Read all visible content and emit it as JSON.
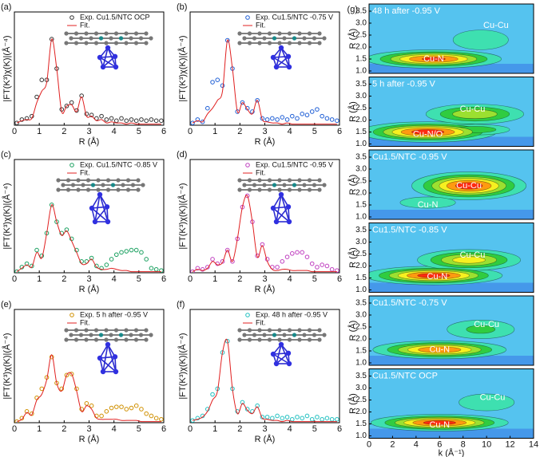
{
  "chart_data": [
    {
      "type": "line",
      "panel_label": "(a)",
      "xlabel": "R (Å)",
      "ylabel": "|FT(K³)χ(K)|(Å⁻⁴)",
      "xlim": [
        0,
        6
      ],
      "ylim": [
        0,
        1
      ],
      "xticks": [
        0,
        1,
        2,
        3,
        4,
        5,
        6
      ],
      "x": [
        0.1,
        0.3,
        0.5,
        0.7,
        0.9,
        1.1,
        1.3,
        1.5,
        1.7,
        1.9,
        2.1,
        2.3,
        2.5,
        2.7,
        2.9,
        3.1,
        3.3,
        3.5,
        3.7,
        3.9,
        4.1,
        4.3,
        4.5,
        4.7,
        4.9,
        5.1,
        5.3,
        5.5,
        5.7,
        5.9
      ],
      "series": [
        {
          "name": "Exp. Cu1.5/NTC OCP",
          "style": "markers",
          "color": "#333333",
          "values": [
            0.02,
            0.05,
            0.06,
            0.08,
            0.25,
            0.4,
            0.4,
            0.76,
            0.5,
            0.14,
            0.17,
            0.2,
            0.13,
            0.26,
            0.1,
            0.09,
            0.06,
            0.08,
            0.05,
            0.06,
            0.04,
            0.06,
            0.04,
            0.05,
            0.04,
            0.05,
            0.04,
            0.05,
            0.04,
            0.04
          ]
        },
        {
          "name": "Fit.",
          "style": "line",
          "color": "#e02020",
          "values": [
            0.02,
            0.04,
            0.05,
            0.06,
            0.2,
            0.3,
            0.38,
            0.76,
            0.5,
            0.12,
            0.17,
            0.18,
            0.12,
            0.25,
            0.08,
            0.08,
            0.04,
            0.05,
            0.02,
            0.03,
            0.02,
            0.02,
            0.01,
            0.02,
            0.01,
            0.01,
            0.01,
            0.01,
            0.01,
            0.01
          ]
        }
      ]
    },
    {
      "type": "line",
      "panel_label": "(b)",
      "xlabel": "R (Å)",
      "ylabel": "|FT(K³)χ(K)|(Å⁻⁴)",
      "xlim": [
        0,
        6
      ],
      "ylim": [
        0,
        1
      ],
      "xticks": [
        0,
        1,
        2,
        3,
        4,
        5,
        6
      ],
      "x": [
        0.1,
        0.3,
        0.5,
        0.7,
        0.9,
        1.1,
        1.3,
        1.5,
        1.7,
        1.9,
        2.1,
        2.3,
        2.5,
        2.7,
        2.9,
        3.1,
        3.3,
        3.5,
        3.7,
        3.9,
        4.1,
        4.3,
        4.5,
        4.7,
        4.9,
        5.1,
        5.3,
        5.5,
        5.7,
        5.9
      ],
      "series": [
        {
          "name": "Exp. Cu1.5/NTC -0.75 V",
          "style": "markers",
          "color": "#1f5fd6",
          "values": [
            0.02,
            0.05,
            0.03,
            0.15,
            0.38,
            0.4,
            0.35,
            0.75,
            0.5,
            0.12,
            0.2,
            0.15,
            0.12,
            0.22,
            0.06,
            0.05,
            0.06,
            0.05,
            0.07,
            0.05,
            0.08,
            0.06,
            0.1,
            0.09,
            0.12,
            0.14,
            0.08,
            0.06,
            0.05,
            0.04
          ]
        },
        {
          "name": "Fit.",
          "style": "line",
          "color": "#e02020",
          "values": [
            0.02,
            0.04,
            0.03,
            0.1,
            0.15,
            0.22,
            0.3,
            0.75,
            0.5,
            0.12,
            0.2,
            0.14,
            0.1,
            0.22,
            0.05,
            0.03,
            0.02,
            0.02,
            0.01,
            0.02,
            0.01,
            0.01,
            0.01,
            0.01,
            0.01,
            0.01,
            0.01,
            0.01,
            0.01,
            0.01
          ]
        }
      ]
    },
    {
      "type": "line",
      "panel_label": "(c)",
      "xlabel": "R (Å)",
      "ylabel": "|FT(K³)χ(K)|(Å⁻⁴)",
      "xlim": [
        0,
        6
      ],
      "ylim": [
        0,
        1
      ],
      "xticks": [
        0,
        1,
        2,
        3,
        4,
        5,
        6
      ],
      "x": [
        0.1,
        0.3,
        0.5,
        0.7,
        0.9,
        1.1,
        1.3,
        1.5,
        1.7,
        1.9,
        2.1,
        2.3,
        2.5,
        2.7,
        2.9,
        3.1,
        3.3,
        3.5,
        3.7,
        3.9,
        4.1,
        4.3,
        4.5,
        4.7,
        4.9,
        5.1,
        5.3,
        5.5,
        5.7,
        5.9
      ],
      "series": [
        {
          "name": "Exp. Cu1.5/NTC -0.85 V",
          "style": "markers",
          "color": "#1aa060",
          "values": [
            0.01,
            0.05,
            0.08,
            0.06,
            0.2,
            0.15,
            0.35,
            0.6,
            0.45,
            0.35,
            0.38,
            0.3,
            0.2,
            0.1,
            0.1,
            0.13,
            0.06,
            0.04,
            0.07,
            0.12,
            0.16,
            0.18,
            0.19,
            0.2,
            0.2,
            0.18,
            0.12,
            0.04,
            0.03,
            0.02
          ]
        },
        {
          "name": "Fit.",
          "style": "line",
          "color": "#e02020",
          "values": [
            0.01,
            0.04,
            0.07,
            0.05,
            0.18,
            0.13,
            0.35,
            0.6,
            0.45,
            0.33,
            0.37,
            0.28,
            0.18,
            0.08,
            0.08,
            0.12,
            0.05,
            0.03,
            0.03,
            0.04,
            0.03,
            0.02,
            0.02,
            0.01,
            0.01,
            0.01,
            0.01,
            0.01,
            0.01,
            0.01
          ]
        }
      ]
    },
    {
      "type": "line",
      "panel_label": "(d)",
      "xlabel": "R (Å)",
      "ylabel": "|FT(K³)χ(K)|(Å⁻⁴)",
      "xlim": [
        0,
        6
      ],
      "ylim": [
        0,
        1
      ],
      "xticks": [
        0,
        1,
        2,
        3,
        4,
        5,
        6
      ],
      "x": [
        0.1,
        0.3,
        0.5,
        0.7,
        0.9,
        1.1,
        1.3,
        1.5,
        1.7,
        1.9,
        2.1,
        2.3,
        2.5,
        2.7,
        2.9,
        3.1,
        3.3,
        3.5,
        3.7,
        3.9,
        4.1,
        4.3,
        4.5,
        4.7,
        4.9,
        5.1,
        5.3,
        5.5,
        5.7,
        5.9
      ],
      "series": [
        {
          "name": "Exp. Cu1.5/NTC -0.95 V",
          "style": "markers",
          "color": "#c040c0",
          "values": [
            0.01,
            0.04,
            0.03,
            0.05,
            0.12,
            0.08,
            0.1,
            0.2,
            0.1,
            0.3,
            0.58,
            0.68,
            0.45,
            0.15,
            0.25,
            0.12,
            0.05,
            0.05,
            0.1,
            0.14,
            0.17,
            0.18,
            0.18,
            0.14,
            0.08,
            0.05,
            0.07,
            0.06,
            0.03,
            0.02
          ]
        },
        {
          "name": "Fit.",
          "style": "line",
          "color": "#e02020",
          "values": [
            0.01,
            0.03,
            0.02,
            0.04,
            0.1,
            0.07,
            0.09,
            0.2,
            0.1,
            0.3,
            0.58,
            0.68,
            0.45,
            0.14,
            0.24,
            0.1,
            0.03,
            0.02,
            0.03,
            0.03,
            0.02,
            0.02,
            0.02,
            0.02,
            0.01,
            0.01,
            0.01,
            0.01,
            0.01,
            0.01
          ]
        }
      ]
    },
    {
      "type": "line",
      "panel_label": "(e)",
      "xlabel": "R (Å)",
      "ylabel": "|FT(K³)χ(K)|(Å⁻⁴)",
      "xlim": [
        0,
        6
      ],
      "ylim": [
        0,
        1
      ],
      "xticks": [
        0,
        1,
        2,
        3,
        4,
        5,
        6
      ],
      "x": [
        0.1,
        0.3,
        0.5,
        0.7,
        0.9,
        1.1,
        1.3,
        1.5,
        1.7,
        1.9,
        2.1,
        2.3,
        2.5,
        2.7,
        2.9,
        3.1,
        3.3,
        3.5,
        3.7,
        3.9,
        4.1,
        4.3,
        4.5,
        4.7,
        4.9,
        5.1,
        5.3,
        5.5,
        5.7,
        5.9
      ],
      "series": [
        {
          "name": "Exp. 5 h after -0.95 V",
          "style": "markers",
          "color": "#d09000",
          "values": [
            0.01,
            0.04,
            0.1,
            0.08,
            0.22,
            0.3,
            0.4,
            0.58,
            0.35,
            0.3,
            0.42,
            0.43,
            0.3,
            0.12,
            0.17,
            0.15,
            0.06,
            0.06,
            0.1,
            0.13,
            0.14,
            0.14,
            0.12,
            0.13,
            0.15,
            0.12,
            0.08,
            0.06,
            0.04,
            0.03
          ]
        },
        {
          "name": "Fit.",
          "style": "line",
          "color": "#e02020",
          "values": [
            0.01,
            0.03,
            0.09,
            0.07,
            0.2,
            0.25,
            0.38,
            0.6,
            0.35,
            0.28,
            0.42,
            0.43,
            0.28,
            0.1,
            0.15,
            0.12,
            0.04,
            0.03,
            0.03,
            0.03,
            0.03,
            0.02,
            0.02,
            0.02,
            0.02,
            0.01,
            0.01,
            0.01,
            0.01,
            0.01
          ]
        }
      ]
    },
    {
      "type": "line",
      "panel_label": "(f)",
      "xlabel": "R (Å)",
      "ylabel": "|FT(K³)χ(K)|(Å⁻⁴)",
      "xlim": [
        0,
        6
      ],
      "ylim": [
        0,
        1
      ],
      "xticks": [
        0,
        1,
        2,
        3,
        4,
        5,
        6
      ],
      "x": [
        0.1,
        0.3,
        0.5,
        0.7,
        0.9,
        1.1,
        1.3,
        1.5,
        1.7,
        1.9,
        2.1,
        2.3,
        2.5,
        2.7,
        2.9,
        3.1,
        3.3,
        3.5,
        3.7,
        3.9,
        4.1,
        4.3,
        4.5,
        4.7,
        4.9,
        5.1,
        5.3,
        5.5,
        5.7,
        5.9
      ],
      "series": [
        {
          "name": "Exp. 48 h after -0.95 V",
          "style": "markers",
          "color": "#20c0c0",
          "values": [
            0.02,
            0.04,
            0.06,
            0.12,
            0.25,
            0.3,
            0.62,
            0.72,
            0.3,
            0.1,
            0.18,
            0.12,
            0.1,
            0.15,
            0.05,
            0.05,
            0.04,
            0.06,
            0.04,
            0.05,
            0.03,
            0.05,
            0.04,
            0.06,
            0.03,
            0.05,
            0.03,
            0.04,
            0.03,
            0.03
          ]
        },
        {
          "name": "Fit.",
          "style": "line",
          "color": "#e02020",
          "values": [
            0.02,
            0.03,
            0.05,
            0.1,
            0.2,
            0.28,
            0.62,
            0.72,
            0.3,
            0.08,
            0.17,
            0.11,
            0.08,
            0.14,
            0.04,
            0.03,
            0.02,
            0.02,
            0.01,
            0.02,
            0.01,
            0.01,
            0.01,
            0.01,
            0.01,
            0.01,
            0.01,
            0.01,
            0.01,
            0.01
          ]
        }
      ]
    },
    {
      "type": "contour",
      "panel_label": "(g)",
      "title": "48 h after -0.95 V",
      "ylabel": "R (Å)",
      "xlim": [
        0,
        14
      ],
      "ylim": [
        0.9,
        3.8
      ],
      "background": "#55c3ef",
      "yticks": [
        {
          "value": 1,
          "label": "1.0"
        },
        1.5,
        {
          "value": 2,
          "label": "2.0"
        },
        2.5,
        {
          "value": 3,
          "label": "3.0"
        },
        3.5
      ],
      "peaks": [
        {
          "k": 5.5,
          "R": 1.5,
          "sk": 3.0,
          "sR": 0.2,
          "amp": 0.95
        },
        {
          "k": 9.5,
          "R": 2.3,
          "sk": 2.0,
          "sR": 0.35,
          "amp": 0.3
        }
      ],
      "annotations": [
        {
          "text": "Cu-N",
          "k": 5.5,
          "R": 1.5
        },
        {
          "text": "Cu-Cu",
          "k": 10.8,
          "R": 2.9
        }
      ]
    },
    {
      "type": "contour",
      "title": "5 h after -0.95 V",
      "ylabel": "R (Å)",
      "xlim": [
        0,
        14
      ],
      "ylim": [
        0.9,
        3.8
      ],
      "background": "#55c3ef",
      "yticks": [
        {
          "value": 1,
          "label": "1.0"
        },
        1.5,
        {
          "value": 2,
          "label": "2.0"
        },
        2.5,
        {
          "value": 3,
          "label": "3.0"
        },
        3.5
      ],
      "peaks": [
        {
          "k": 5.0,
          "R": 1.5,
          "sk": 3.0,
          "sR": 0.22,
          "amp": 1.0
        },
        {
          "k": 9.0,
          "R": 2.25,
          "sk": 2.5,
          "sR": 0.25,
          "amp": 0.6
        },
        {
          "k": 9.0,
          "R": 1.6,
          "sk": 2.0,
          "sR": 0.15,
          "amp": 0.45
        }
      ],
      "annotations": [
        {
          "text": "Cu-N/O",
          "k": 5.0,
          "R": 1.4
        },
        {
          "text": "Cu-Cu",
          "k": 8.8,
          "R": 2.45
        }
      ]
    },
    {
      "type": "contour",
      "title": "Cu1.5/NTC -0.95 V",
      "ylabel": "R (Å)",
      "xlim": [
        0,
        14
      ],
      "ylim": [
        0.9,
        3.8
      ],
      "background": "#55c3ef",
      "yticks": [
        {
          "value": 1,
          "label": "1.0"
        },
        1.5,
        {
          "value": 2,
          "label": "2.0"
        },
        2.5,
        {
          "value": 3,
          "label": "3.0"
        },
        3.5
      ],
      "peaks": [
        {
          "k": 8.5,
          "R": 2.3,
          "sk": 2.5,
          "sR": 0.3,
          "amp": 1.0
        },
        {
          "k": 5.0,
          "R": 1.6,
          "sk": 2.0,
          "sR": 0.2,
          "amp": 0.3
        }
      ],
      "annotations": [
        {
          "text": "Cu-Cu",
          "k": 8.5,
          "R": 2.3
        },
        {
          "text": "Cu-N",
          "k": 5.0,
          "R": 1.5
        }
      ]
    },
    {
      "type": "contour",
      "title": "Cu1.5/NTC -0.85 V",
      "ylabel": "R (Å)",
      "xlim": [
        0,
        14
      ],
      "ylim": [
        0.9,
        3.8
      ],
      "background": "#55c3ef",
      "yticks": [
        {
          "value": 1,
          "label": "1.0"
        },
        1.5,
        {
          "value": 2,
          "label": "2.0"
        },
        2.5,
        {
          "value": 3,
          "label": "3.0"
        },
        3.5
      ],
      "peaks": [
        {
          "k": 5.5,
          "R": 1.6,
          "sk": 3.0,
          "sR": 0.2,
          "amp": 1.0
        },
        {
          "k": 8.5,
          "R": 2.25,
          "sk": 2.5,
          "sR": 0.25,
          "amp": 0.7
        }
      ],
      "annotations": [
        {
          "text": "Cu-N",
          "k": 5.8,
          "R": 1.55
        },
        {
          "text": "Cu-Cu",
          "k": 8.8,
          "R": 2.45
        }
      ]
    },
    {
      "type": "contour",
      "title": "Cu1.5/NTC -0.75 V",
      "ylabel": "R (Å)",
      "xlim": [
        0,
        14
      ],
      "ylim": [
        0.9,
        3.8
      ],
      "background": "#55c3ef",
      "yticks": [
        {
          "value": 1,
          "label": "1.0"
        },
        1.5,
        {
          "value": 2,
          "label": "2.0"
        },
        2.5,
        {
          "value": 3,
          "label": "3.0"
        },
        3.5
      ],
      "peaks": [
        {
          "k": 6.0,
          "R": 1.55,
          "sk": 3.0,
          "sR": 0.2,
          "amp": 0.9
        },
        {
          "k": 9.5,
          "R": 2.4,
          "sk": 2.2,
          "sR": 0.3,
          "amp": 0.35
        }
      ],
      "annotations": [
        {
          "text": "Cu-N",
          "k": 6.0,
          "R": 1.55
        },
        {
          "text": "Cu-Cu",
          "k": 10.0,
          "R": 2.6
        }
      ]
    },
    {
      "type": "contour",
      "title": "Cu1.5/NTC OCP",
      "ylabel": "R (Å)",
      "xlabel": "k (Å⁻¹)",
      "xlim": [
        0,
        14
      ],
      "ylim": [
        0.9,
        3.8
      ],
      "background": "#55c3ef",
      "xticks": [
        0,
        2,
        4,
        6,
        8,
        10,
        12,
        14
      ],
      "yticks": [
        {
          "value": 1,
          "label": "1.0"
        },
        1.5,
        {
          "value": 2,
          "label": "2.0"
        },
        2.5,
        {
          "value": 3,
          "label": "3.0"
        },
        3.5
      ],
      "peaks": [
        {
          "k": 6.0,
          "R": 1.55,
          "sk": 3.0,
          "sR": 0.18,
          "amp": 1.0
        },
        {
          "k": 10.0,
          "R": 2.4,
          "sk": 2.0,
          "sR": 0.3,
          "amp": 0.3
        }
      ],
      "annotations": [
        {
          "text": "Cu-N",
          "k": 6.0,
          "R": 1.45
        },
        {
          "text": "Cu-Cu",
          "k": 10.5,
          "R": 2.6
        }
      ]
    }
  ]
}
